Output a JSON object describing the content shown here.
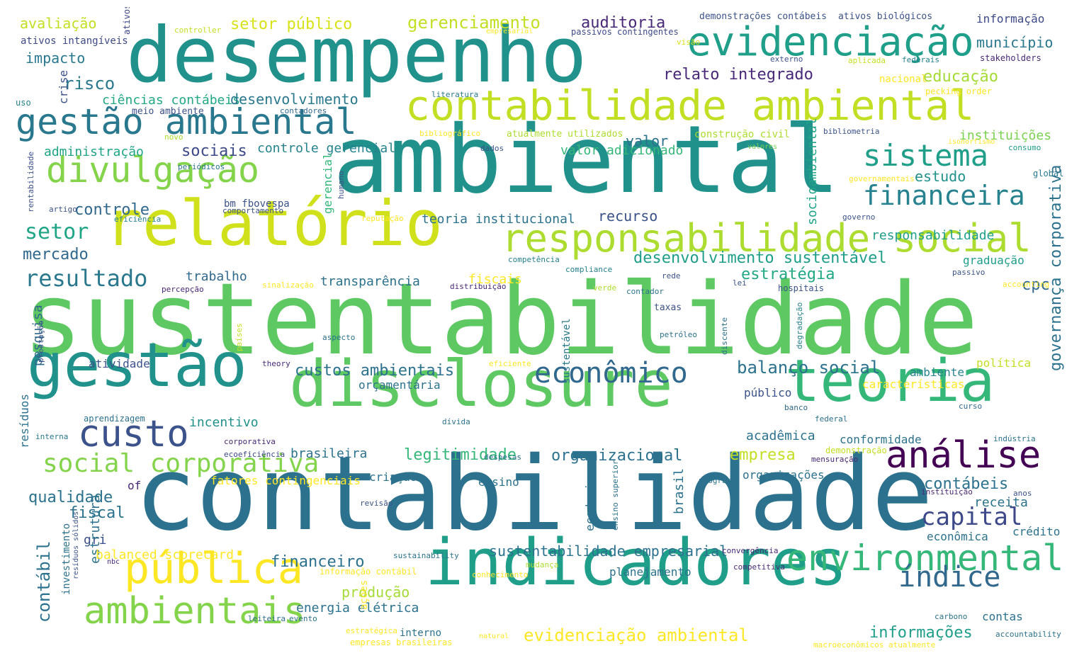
{
  "words": [
    {
      "text": "sustentabilidade",
      "color": "#5ec962"
    },
    {
      "text": "contabilidade",
      "color": "#2c728e"
    },
    {
      "text": "ambiental",
      "color": "#21918c"
    },
    {
      "text": "desempenho",
      "color": "#21918c"
    },
    {
      "text": "relatório",
      "color": "#d0e11c"
    },
    {
      "text": "disclosure",
      "color": "#5ec962"
    },
    {
      "text": "indicadores",
      "color": "#1f9e89"
    },
    {
      "text": "gestão",
      "color": "#21918c"
    },
    {
      "text": "teoria",
      "color": "#35b779"
    },
    {
      "text": "contabilidade ambiental",
      "color": "#c2df23"
    },
    {
      "text": "responsabilidade social",
      "color": "#addc30"
    },
    {
      "text": "evidenciação",
      "color": "#1f9e89"
    },
    {
      "text": "gestão ambiental",
      "color": "#2a788e"
    },
    {
      "text": "pública",
      "color": "#fde725"
    },
    {
      "text": "ambientais",
      "color": "#84d44b"
    },
    {
      "text": "environmental",
      "color": "#35b779"
    },
    {
      "text": "custo",
      "color": "#3b528b"
    },
    {
      "text": "análise",
      "color": "#440154"
    },
    {
      "text": "econômico",
      "color": "#31688e"
    },
    {
      "text": "divulgação",
      "color": "#84d44b"
    },
    {
      "text": "sistema",
      "color": "#1f9e89"
    },
    {
      "text": "financeira",
      "color": "#26828e"
    },
    {
      "text": "social corporativa",
      "color": "#84d44b"
    },
    {
      "text": "índice",
      "color": "#31688e"
    },
    {
      "text": "capital",
      "color": "#3e4989"
    },
    {
      "text": "resultado",
      "color": "#2a788e"
    },
    {
      "text": "setor",
      "color": "#20a486"
    },
    {
      "text": "mercado",
      "color": "#31688e"
    },
    {
      "text": "risco",
      "color": "#2a788e"
    },
    {
      "text": "impacto",
      "color": "#2a788e"
    },
    {
      "text": "avaliação",
      "color": "#c2df23"
    },
    {
      "text": "ativos intangíveis",
      "color": "#3e4989"
    },
    {
      "text": "ativos",
      "color": "#3e4989"
    },
    {
      "text": "controller",
      "color": "#c2df23"
    },
    {
      "text": "setor público",
      "color": "#d8e219"
    },
    {
      "text": "gerenciamento",
      "color": "#c2df23"
    },
    {
      "text": "auditoria",
      "color": "#482878"
    },
    {
      "text": "demonstrações contábeis",
      "color": "#3b528b"
    },
    {
      "text": "ativos biológicos",
      "color": "#3b528b"
    },
    {
      "text": "informação",
      "color": "#3e4989"
    },
    {
      "text": "passivos contingentes",
      "color": "#3e4989"
    },
    {
      "text": "visão",
      "color": "#d8e219"
    },
    {
      "text": "empresarial",
      "color": "#fde725"
    },
    {
      "text": "município",
      "color": "#2a788e"
    },
    {
      "text": "externo",
      "color": "#3b528b"
    },
    {
      "text": "aplicada",
      "color": "#c2df23"
    },
    {
      "text": "federais",
      "color": "#26828e"
    },
    {
      "text": "stakeholders",
      "color": "#482878"
    },
    {
      "text": "relato integrado",
      "color": "#482878"
    },
    {
      "text": "educação",
      "color": "#a5db36"
    },
    {
      "text": "nacional",
      "color": "#fde725"
    },
    {
      "text": "pecking order",
      "color": "#fde725"
    },
    {
      "text": "crise",
      "color": "#3b528b"
    },
    {
      "text": "uso",
      "color": "#26828e"
    },
    {
      "text": "ciências contábeis",
      "color": "#22a884"
    },
    {
      "text": "desenvolvimento",
      "color": "#2a788e"
    },
    {
      "text": "literatura",
      "color": "#2a788e"
    },
    {
      "text": "meio ambiente",
      "color": "#3b528b"
    },
    {
      "text": "contadores",
      "color": "#31688e"
    },
    {
      "text": "socioambiental",
      "color": "#20a486"
    },
    {
      "text": "bibliometria",
      "color": "#3b528b"
    },
    {
      "text": "novo",
      "color": "#addc30"
    },
    {
      "text": "bibliográfico",
      "color": "#fde725"
    },
    {
      "text": "atualmente utilizados",
      "color": "#addc30"
    },
    {
      "text": "construção civil",
      "color": "#addc30"
    },
    {
      "text": "instituições",
      "color": "#7ad151"
    },
    {
      "text": "isonorfismo",
      "color": "#fde725"
    },
    {
      "text": "consumo",
      "color": "#1f9e89"
    },
    {
      "text": "administração",
      "color": "#20a486"
    },
    {
      "text": "sociais",
      "color": "#3e4989"
    },
    {
      "text": "controle gerencial",
      "color": "#26828e"
    },
    {
      "text": "valor",
      "color": "#2c728e"
    },
    {
      "text": "valor adicionado",
      "color": "#35b779"
    },
    {
      "text": "dados",
      "color": "#3b528b"
    },
    {
      "text": "valores",
      "color": "#7ad151"
    },
    {
      "text": "periódicos",
      "color": "#2c728e"
    },
    {
      "text": "rentabilidade",
      "color": "#3b528b"
    },
    {
      "text": "gerencial",
      "color": "#35b779"
    },
    {
      "text": "humano",
      "color": "#3b528b"
    },
    {
      "text": "governamentais",
      "color": "#fde725"
    },
    {
      "text": "estudo",
      "color": "#21918c"
    },
    {
      "text": "global",
      "color": "#2a788e"
    },
    {
      "text": "bm fbovespa",
      "color": "#3b528b"
    },
    {
      "text": "controle",
      "color": "#31688e"
    },
    {
      "text": "artigo",
      "color": "#3b528b"
    },
    {
      "text": "comportamento",
      "color": "#3b528b"
    },
    {
      "text": "recurso",
      "color": "#3b528b"
    },
    {
      "text": "governo",
      "color": "#3b528b"
    },
    {
      "text": "eficiência",
      "color": "#26828e"
    },
    {
      "text": "reputação",
      "color": "#fde725"
    },
    {
      "text": "teoria institucional",
      "color": "#2c728e"
    },
    {
      "text": "responsabilidade",
      "color": "#1f9e89"
    },
    {
      "text": "desenvolvimento sustentável",
      "color": "#1f9e89"
    },
    {
      "text": "graduação",
      "color": "#1f9e89"
    },
    {
      "text": "cpc",
      "color": "#31688e"
    },
    {
      "text": "competência",
      "color": "#26828e"
    },
    {
      "text": "compliance",
      "color": "#26828e"
    },
    {
      "text": "rede",
      "color": "#3b528b"
    },
    {
      "text": "passivo",
      "color": "#3b528b"
    },
    {
      "text": "fiscais",
      "color": "#fde725"
    },
    {
      "text": "trabalho",
      "color": "#31688e"
    },
    {
      "text": "transparência",
      "color": "#2c728e"
    },
    {
      "text": "estratégia",
      "color": "#22a884"
    },
    {
      "text": "sinalização",
      "color": "#fde725"
    },
    {
      "text": "distribuição",
      "color": "#482878"
    },
    {
      "text": "percepção",
      "color": "#482878"
    },
    {
      "text": "lei",
      "color": "#3b528b"
    },
    {
      "text": "hospitais",
      "color": "#3b528b"
    },
    {
      "text": "verde",
      "color": "#addc30"
    },
    {
      "text": "contador",
      "color": "#2c728e"
    },
    {
      "text": "accounting",
      "color": "#fde725"
    },
    {
      "text": "taxas",
      "color": "#3b528b"
    },
    {
      "text": "pesquisa",
      "color": "#31688e"
    },
    {
      "text": "prestação",
      "color": "#3b528b"
    },
    {
      "text": "países",
      "color": "#c2df23"
    },
    {
      "text": "aspecto",
      "color": "#2c728e"
    },
    {
      "text": "petróleo",
      "color": "#2c728e"
    },
    {
      "text": "discente",
      "color": "#2c728e"
    },
    {
      "text": "degradação",
      "color": "#26828e"
    },
    {
      "text": "governança corporativa",
      "color": "#2c728e"
    },
    {
      "text": "atividade",
      "color": "#3b528b"
    },
    {
      "text": "theory",
      "color": "#482878"
    },
    {
      "text": "sustentável",
      "color": "#2a788e"
    },
    {
      "text": "eficiente",
      "color": "#fde725"
    },
    {
      "text": "custos ambientais",
      "color": "#2c728e"
    },
    {
      "text": "balanço social",
      "color": "#2c728e"
    },
    {
      "text": "política",
      "color": "#c2df23"
    },
    {
      "text": "ambiente",
      "color": "#26828e"
    },
    {
      "text": "orçamentária",
      "color": "#2c728e"
    },
    {
      "text": "características",
      "color": "#fde725"
    },
    {
      "text": "público",
      "color": "#3b528b"
    },
    {
      "text": "resíduos",
      "color": "#2c728e"
    },
    {
      "text": "aprendizagem",
      "color": "#2c728e"
    },
    {
      "text": "incentivo",
      "color": "#21918c"
    },
    {
      "text": "dívida",
      "color": "#2c728e"
    },
    {
      "text": "banco",
      "color": "#31688e"
    },
    {
      "text": "curso",
      "color": "#31688e"
    },
    {
      "text": "federal",
      "color": "#2c728e"
    },
    {
      "text": "interna",
      "color": "#2a788e"
    },
    {
      "text": "acadêmica",
      "color": "#2c728e"
    },
    {
      "text": "conformidade",
      "color": "#2c728e"
    },
    {
      "text": "indústria",
      "color": "#2c728e"
    },
    {
      "text": "corporativa",
      "color": "#482878"
    },
    {
      "text": "brasileira",
      "color": "#2c728e"
    },
    {
      "text": "legitimidade",
      "color": "#35b779"
    },
    {
      "text": "organizacional",
      "color": "#2c728e"
    },
    {
      "text": "empresa",
      "color": "#c2df23"
    },
    {
      "text": "demonstração",
      "color": "#c2df23"
    },
    {
      "text": "ecoeficiência",
      "color": "#3e4989"
    },
    {
      "text": "mensuração",
      "color": "#482878"
    },
    {
      "text": "despesas",
      "color": "#2c728e"
    },
    {
      "text": "contábeis",
      "color": "#2c728e"
    },
    {
      "text": "of",
      "color": "#482878"
    },
    {
      "text": "fatores contingenciais",
      "color": "#fde725"
    },
    {
      "text": "criação",
      "color": "#2c728e"
    },
    {
      "text": "ensino",
      "color": "#2c728e"
    },
    {
      "text": "programa",
      "color": "#2c728e"
    },
    {
      "text": "organizações",
      "color": "#2c728e"
    },
    {
      "text": "qualidade",
      "color": "#2c728e"
    },
    {
      "text": "brasil",
      "color": "#2c728e"
    },
    {
      "text": "ensino superior",
      "color": "#2c728e"
    },
    {
      "text": "instituição",
      "color": "#482878"
    },
    {
      "text": "anos",
      "color": "#3b528b"
    },
    {
      "text": "receita",
      "color": "#2c728e"
    },
    {
      "text": "fiscal",
      "color": "#2c728e"
    },
    {
      "text": "ecodesign",
      "color": "#2c728e"
    },
    {
      "text": "revisão",
      "color": "#3b528b"
    },
    {
      "text": "contábil",
      "color": "#2c728e"
    },
    {
      "text": "gri",
      "color": "#3b528b"
    },
    {
      "text": "crédito",
      "color": "#2c728e"
    },
    {
      "text": "econômica",
      "color": "#2c728e"
    },
    {
      "text": "estrutura",
      "color": "#2c728e"
    },
    {
      "text": "investimento",
      "color": "#2c728e"
    },
    {
      "text": "resíduos sólidos",
      "color": "#3b528b"
    },
    {
      "text": "balanced scorecard",
      "color": "#fde725"
    },
    {
      "text": "sustentabilidade empresarial",
      "color": "#2c728e"
    },
    {
      "text": "convergência",
      "color": "#482878"
    },
    {
      "text": "sustainability",
      "color": "#2c728e"
    },
    {
      "text": "nbc",
      "color": "#482878"
    },
    {
      "text": "financeiro",
      "color": "#2c728e"
    },
    {
      "text": "mudança",
      "color": "#addc30"
    },
    {
      "text": "informação contábil",
      "color": "#fde725"
    },
    {
      "text": "planejamento",
      "color": "#2c728e"
    },
    {
      "text": "competitiva",
      "color": "#482878"
    },
    {
      "text": "conhecimento",
      "color": "#fde725"
    },
    {
      "text": "produção",
      "color": "#a5db36"
    },
    {
      "text": "energia elétrica",
      "color": "#2c728e"
    },
    {
      "text": "ações",
      "color": "#fde725"
    },
    {
      "text": "contas",
      "color": "#2c728e"
    },
    {
      "text": "evento",
      "color": "#2c728e"
    },
    {
      "text": "leiteira",
      "color": "#2c728e"
    },
    {
      "text": "carbono",
      "color": "#2c728e"
    },
    {
      "text": "evidenciação ambiental",
      "color": "#fde725"
    },
    {
      "text": "informações",
      "color": "#1f9e89"
    },
    {
      "text": "accountability",
      "color": "#2c728e"
    },
    {
      "text": "estratégica",
      "color": "#fde725"
    },
    {
      "text": "interno",
      "color": "#2c728e"
    },
    {
      "text": "natural",
      "color": "#fde725"
    },
    {
      "text": "empresas brasileiras",
      "color": "#fde725"
    },
    {
      "text": "macroeconômicos atualmente",
      "color": "#fde725"
    }
  ]
}
